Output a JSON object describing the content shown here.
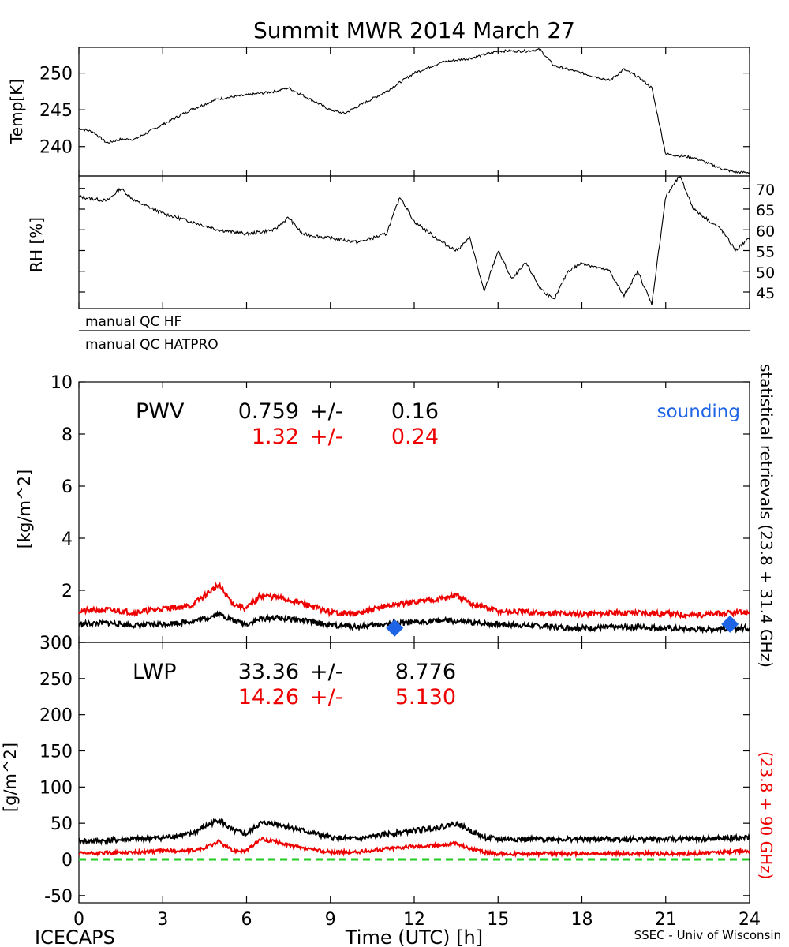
{
  "title": "Summit MWR 2014 March 27",
  "footer": {
    "left": "ICECAPS",
    "right": "SSEC - Univ of Wisconsin"
  },
  "colors": {
    "black": "#000000",
    "red": "#ee0000",
    "blue": "#1e64e6",
    "green": "#22cc22"
  },
  "chart_data": [
    {
      "type": "line",
      "name": "temperature",
      "ylabel": "Temp[K]",
      "ylim": [
        236,
        253.5
      ],
      "yticks": [
        240,
        245,
        250
      ],
      "x": [
        0,
        0.5,
        1,
        1.5,
        2,
        3,
        4,
        5,
        6,
        7,
        7.5,
        8,
        9,
        9.5,
        10,
        11,
        12,
        13,
        14,
        15,
        16,
        16.5,
        17,
        18,
        19,
        19.5,
        20,
        20.5,
        21,
        22,
        23,
        23.5,
        24
      ],
      "values": [
        242.5,
        242,
        240.5,
        241,
        241,
        243,
        245,
        246.5,
        247,
        247.5,
        248,
        247,
        245,
        244.5,
        245.5,
        247.5,
        250,
        251.5,
        252,
        253,
        253,
        253.2,
        251,
        250,
        249,
        250.5,
        249.5,
        248,
        239,
        238.5,
        237,
        236.5,
        236.5
      ]
    },
    {
      "type": "line",
      "name": "relative-humidity",
      "ylabel": "RH [%]",
      "ylim": [
        41,
        73
      ],
      "yticks": [
        45,
        50,
        55,
        60,
        65,
        70
      ],
      "x": [
        0,
        1,
        1.5,
        2,
        3,
        4,
        5,
        6,
        7,
        7.5,
        8,
        9,
        10,
        11,
        11.5,
        12,
        13,
        13.5,
        14,
        14.5,
        15,
        15.5,
        16,
        16.5,
        17,
        17.5,
        18,
        19,
        19.5,
        20,
        20.5,
        21,
        21.5,
        22,
        23,
        23.5,
        24
      ],
      "values": [
        68,
        67,
        70,
        67,
        64,
        62,
        60,
        59,
        60,
        63,
        59,
        58,
        57,
        59,
        68,
        62,
        57,
        55,
        58,
        45,
        55,
        48,
        52,
        46,
        43,
        50,
        52,
        50,
        44,
        50,
        42,
        68,
        73,
        65,
        60,
        55,
        58
      ]
    },
    {
      "type": "line",
      "name": "pwv",
      "title": "PWV",
      "ylabel": "[kg/m^2]",
      "ylim": [
        0,
        10
      ],
      "yticks": [
        0,
        2,
        4,
        6,
        8,
        10
      ],
      "x": [
        0,
        1,
        2,
        3,
        4,
        4.5,
        5,
        5.5,
        6,
        6.5,
        7,
        8,
        9,
        10,
        11,
        12,
        13,
        13.5,
        14,
        15,
        16,
        18,
        20,
        22,
        24
      ],
      "series": [
        {
          "name": "23.8 + 31.4 GHz",
          "color": "#000000",
          "values": [
            0.7,
            0.75,
            0.65,
            0.7,
            0.8,
            0.9,
            1.1,
            0.85,
            0.7,
            0.9,
            0.95,
            0.85,
            0.65,
            0.6,
            0.7,
            0.75,
            0.85,
            0.8,
            0.75,
            0.7,
            0.65,
            0.55,
            0.6,
            0.5,
            0.55
          ]
        },
        {
          "name": "23.8 + 90 GHz",
          "color": "#ee0000",
          "values": [
            1.2,
            1.25,
            1.15,
            1.3,
            1.4,
            1.8,
            2.2,
            1.5,
            1.3,
            1.8,
            1.75,
            1.5,
            1.15,
            1.1,
            1.4,
            1.55,
            1.7,
            1.8,
            1.5,
            1.2,
            1.15,
            1.1,
            1.15,
            1.05,
            1.15
          ]
        }
      ],
      "soundings": {
        "x": [
          11.3,
          23.3
        ],
        "values": [
          0.55,
          0.7
        ]
      },
      "stats": {
        "black": {
          "mean": "0.759",
          "pm": "+/-",
          "sd": "0.16"
        },
        "red": {
          "mean": "1.32",
          "pm": "+/-",
          "sd": "0.24"
        }
      },
      "sounding_label": "sounding"
    },
    {
      "type": "line",
      "name": "lwp",
      "title": "LWP",
      "ylabel": "[g/m^2]",
      "ylim": [
        -60,
        300
      ],
      "yticks": [
        -50,
        0,
        50,
        100,
        150,
        200,
        250,
        300
      ],
      "x": [
        0,
        1,
        2,
        3,
        4,
        4.5,
        5,
        5.5,
        6,
        6.5,
        7,
        8,
        9,
        10,
        11,
        12,
        13,
        13.5,
        14,
        14.5,
        15,
        16,
        18,
        20,
        22,
        24
      ],
      "series": [
        {
          "name": "23.8 + 31.4 GHz",
          "color": "#000000",
          "values": [
            25,
            26,
            28,
            30,
            35,
            45,
            55,
            40,
            35,
            50,
            50,
            40,
            30,
            28,
            35,
            40,
            45,
            50,
            40,
            30,
            28,
            28,
            28,
            28,
            28,
            30
          ]
        },
        {
          "name": "23.8 + 90 GHz",
          "color": "#ee0000",
          "values": [
            8,
            9,
            10,
            12,
            12,
            15,
            25,
            12,
            12,
            28,
            25,
            15,
            10,
            10,
            15,
            18,
            20,
            22,
            15,
            10,
            8,
            8,
            8,
            8,
            8,
            12
          ]
        }
      ],
      "zero_line": 0,
      "stats": {
        "black": {
          "mean": "33.36",
          "pm": "+/-",
          "sd": "8.776"
        },
        "red": {
          "mean": "14.26",
          "pm": "+/-",
          "sd": "5.130"
        }
      }
    }
  ],
  "qc_rows": [
    "manual QC HF",
    "manual QC HATPRO"
  ],
  "x_axis": {
    "label": "Time (UTC) [h]",
    "range": [
      0,
      24
    ],
    "ticks": [
      0,
      3,
      6,
      9,
      12,
      15,
      18,
      21,
      24
    ]
  },
  "side_labels": {
    "black": "statistical retrievals (23.8 + 31.4 GHz)",
    "red": "(23.8 + 90 GHz)"
  }
}
